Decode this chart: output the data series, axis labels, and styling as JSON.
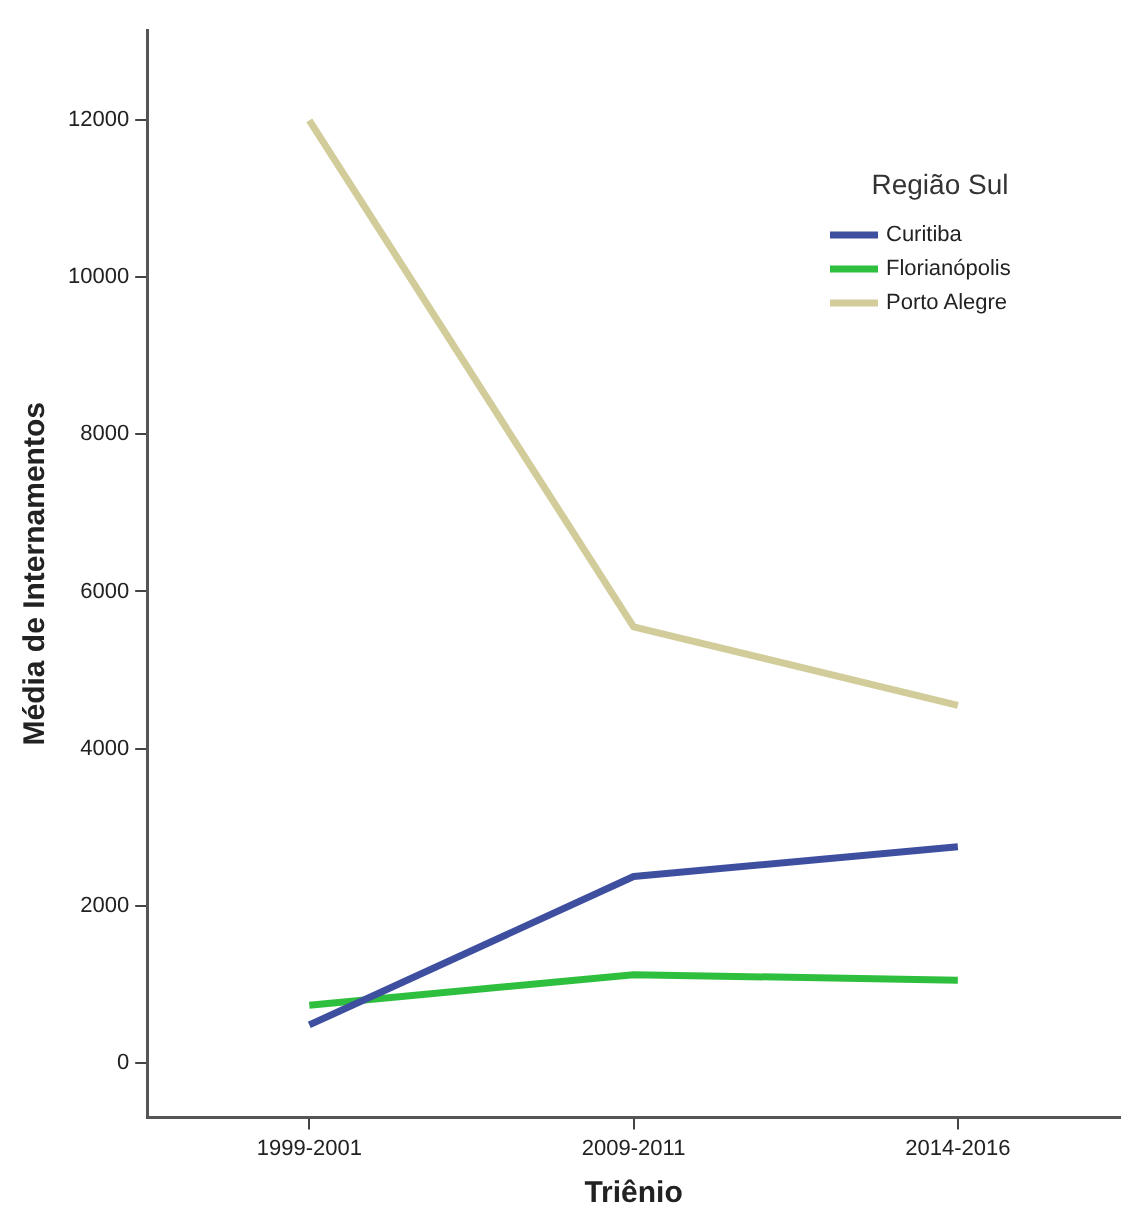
{
  "chart_data": {
    "type": "line",
    "xlabel": "Triênio",
    "ylabel": "Média de Internamentos",
    "legend_title": "Região Sul",
    "legend": "top right",
    "grid": false,
    "marker": "none",
    "line_style": "solid",
    "categories": [
      "1999-2001",
      "2009-2011",
      "2014-2016"
    ],
    "ylim": [
      -700,
      13150
    ],
    "yticks": [
      0,
      2000,
      4000,
      6000,
      8000,
      10000,
      12000
    ],
    "series": [
      {
        "name": "Curitiba",
        "color": "#3f4fa0",
        "values": [
          480,
          2370,
          2750
        ]
      },
      {
        "name": "Florianópolis",
        "color": "#2fbf3f",
        "values": [
          730,
          1120,
          1050
        ]
      },
      {
        "name": "Porto Alegre",
        "color": "#d2cc9a",
        "values": [
          12000,
          5550,
          4550
        ]
      }
    ]
  }
}
